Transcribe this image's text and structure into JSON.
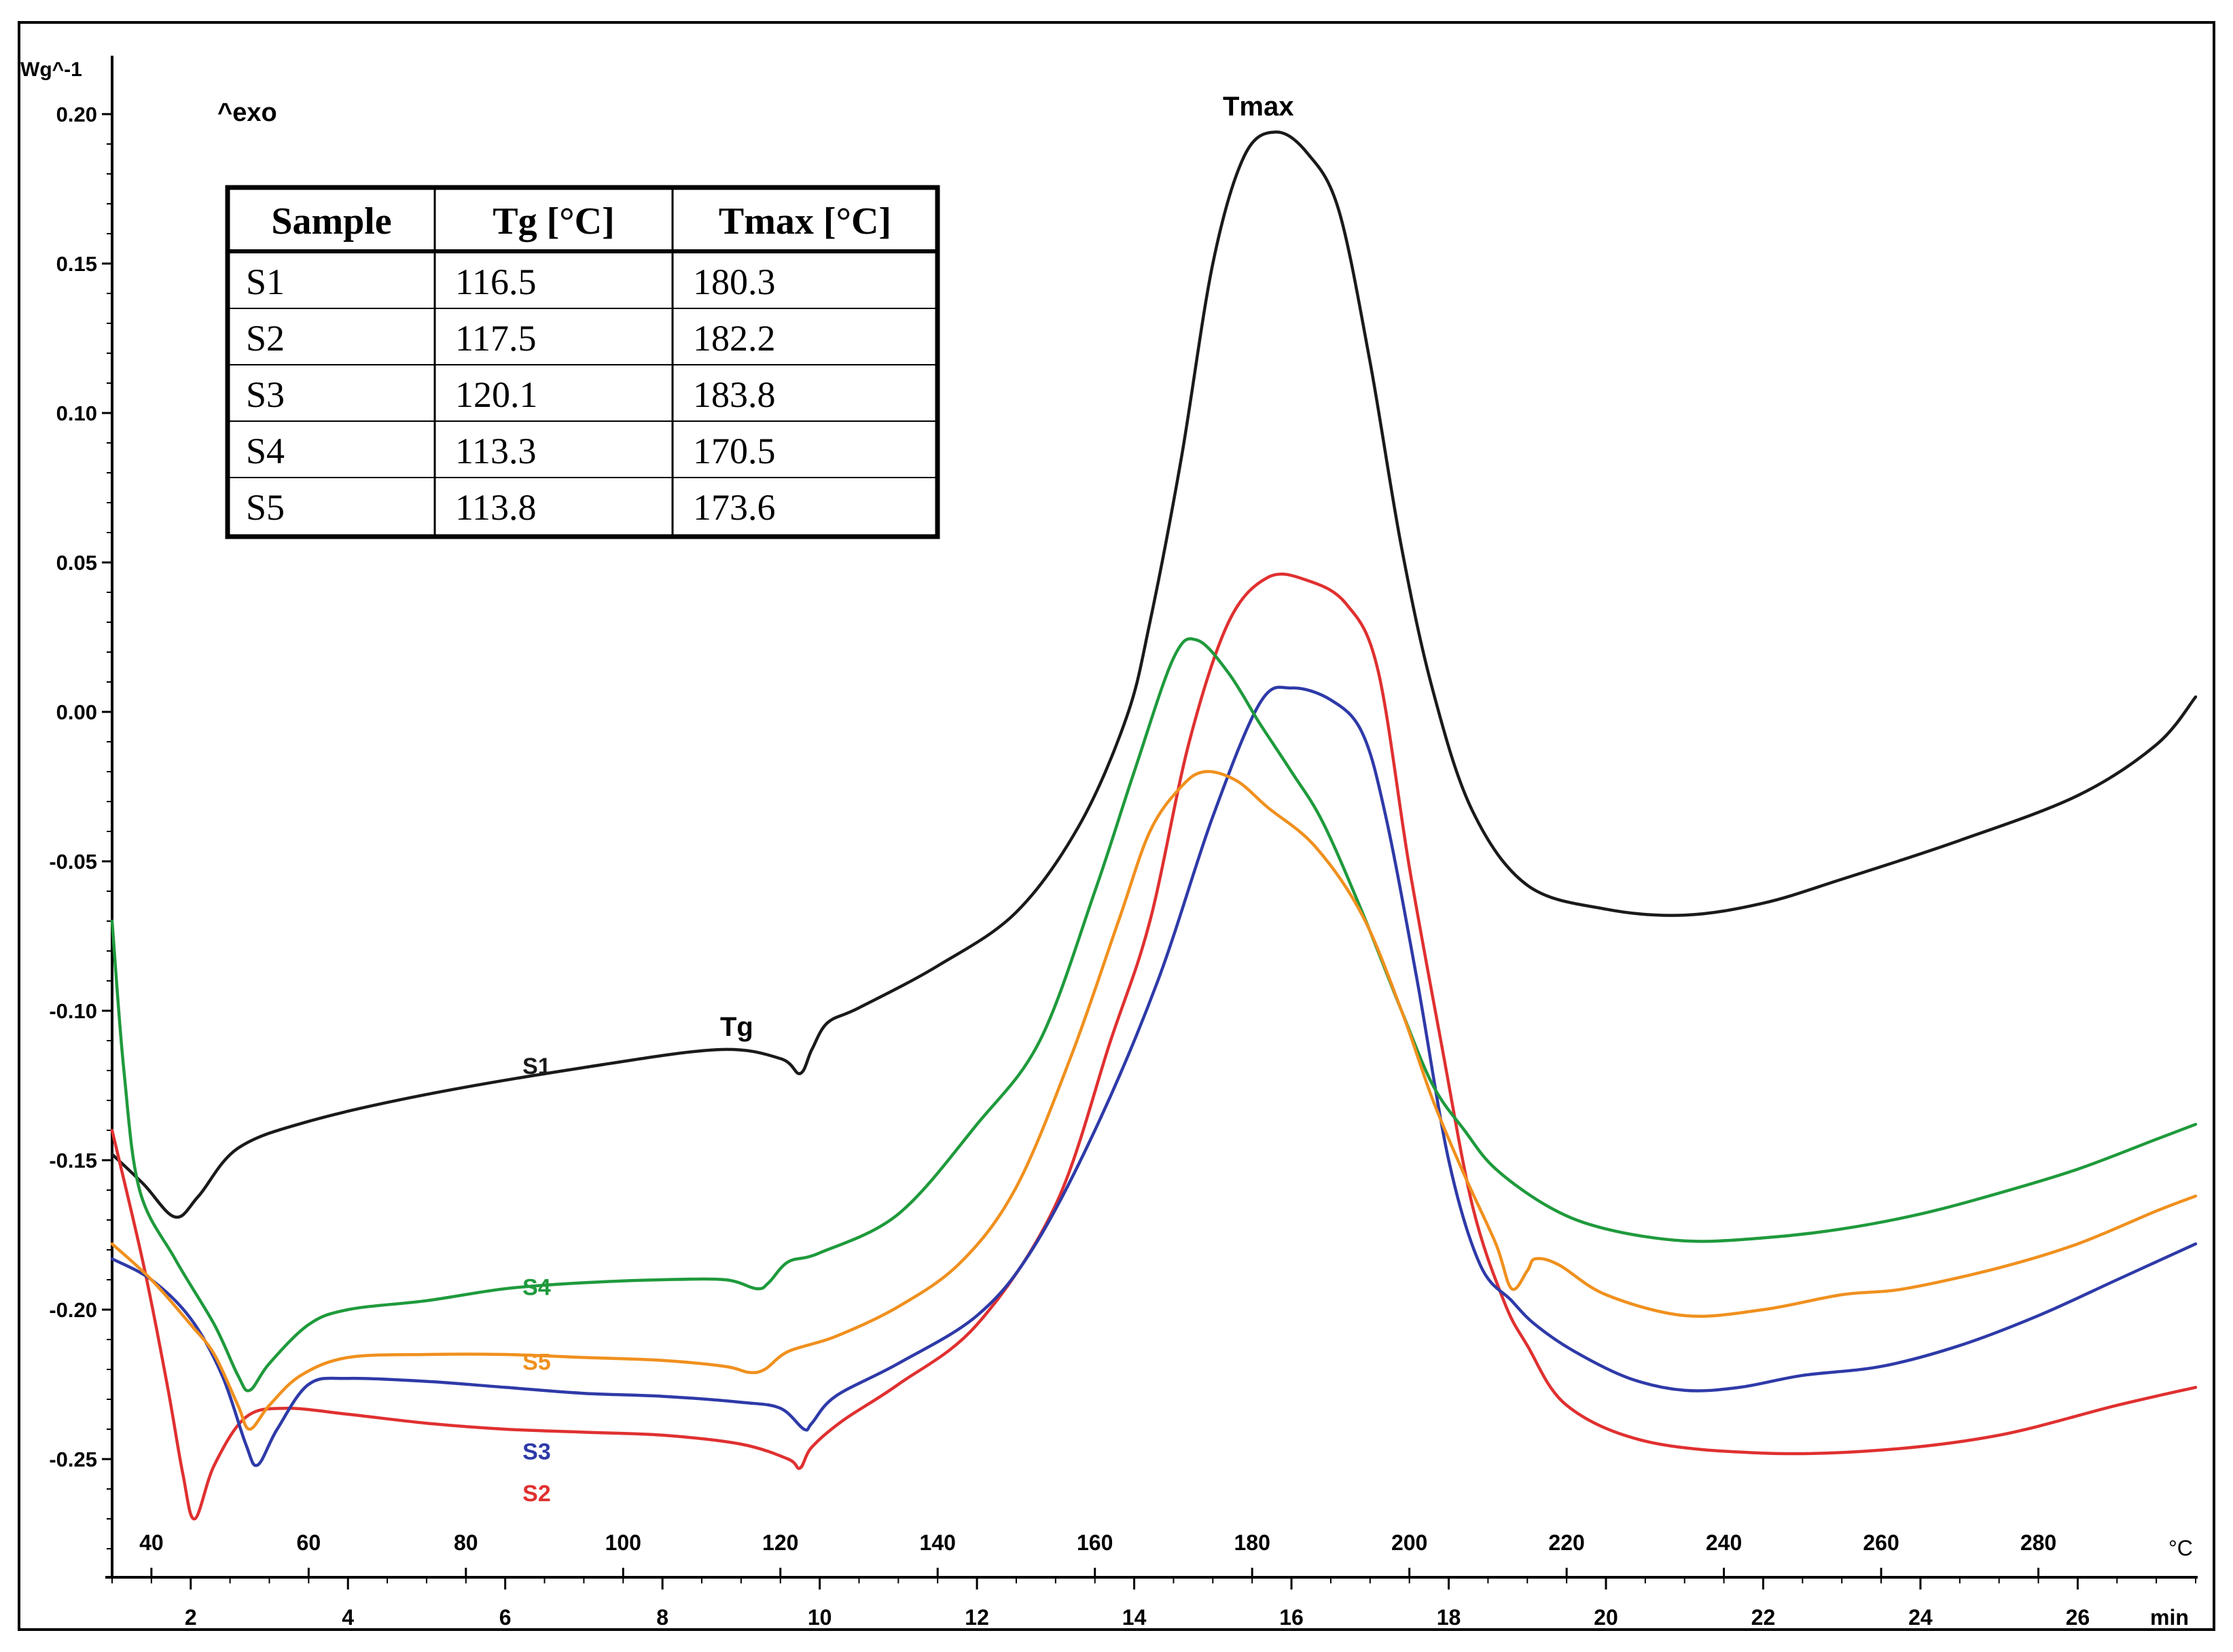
{
  "chart_data": {
    "type": "line",
    "ylabel": "Wg^-1",
    "exo_label": "^exo",
    "peak_label": "Tmax",
    "tg_label": "Tg",
    "ylim": [
      -0.29,
      0.21
    ],
    "yticks": [
      0.2,
      0.15,
      0.1,
      0.05,
      0.0,
      -0.05,
      -0.1,
      -0.15,
      -0.2,
      -0.25
    ],
    "ytick_labels": [
      "0.20",
      "0.15",
      "0.10",
      "0.05",
      "0.00",
      "-0.05",
      "-0.10",
      "-0.15",
      "-0.20",
      "-0.25"
    ],
    "time_axis": {
      "unit": "min",
      "range": [
        1,
        27.5
      ],
      "ticks": [
        2,
        4,
        6,
        8,
        10,
        12,
        14,
        16,
        18,
        20,
        22,
        24,
        26
      ],
      "tick_labels": [
        "2",
        "4",
        "6",
        "8",
        "10",
        "12",
        "14",
        "16",
        "18",
        "20",
        "22",
        "24",
        "26"
      ]
    },
    "temperature_axis": {
      "unit": "°C",
      "tick_labels": [
        "40",
        "60",
        "80",
        "100",
        "120",
        "140",
        "160",
        "180",
        "200",
        "220",
        "240",
        "260",
        "280"
      ],
      "tick_times": [
        1.5,
        3.5,
        5.5,
        7.5,
        9.5,
        11.5,
        13.5,
        15.5,
        17.5,
        19.5,
        21.5,
        23.5,
        25.5
      ]
    },
    "series": [
      {
        "name": "S1",
        "color": "#1a1a1a",
        "label_at": [
          6.4,
          -0.112
        ],
        "points": [
          [
            1,
            -0.148
          ],
          [
            1.4,
            -0.158
          ],
          [
            1.8,
            -0.169
          ],
          [
            2.1,
            -0.162
          ],
          [
            2.6,
            -0.146
          ],
          [
            3.5,
            -0.137
          ],
          [
            5,
            -0.128
          ],
          [
            7,
            -0.119
          ],
          [
            8.7,
            -0.113
          ],
          [
            9.5,
            -0.116
          ],
          [
            9.75,
            -0.121
          ],
          [
            9.9,
            -0.113
          ],
          [
            10.1,
            -0.104
          ],
          [
            10.5,
            -0.099
          ],
          [
            11.5,
            -0.085
          ],
          [
            12.5,
            -0.067
          ],
          [
            13.3,
            -0.038
          ],
          [
            13.9,
            -0.002
          ],
          [
            14.2,
            0.03
          ],
          [
            14.6,
            0.085
          ],
          [
            15,
            0.15
          ],
          [
            15.4,
            0.186
          ],
          [
            15.8,
            0.194
          ],
          [
            16.2,
            0.187
          ],
          [
            16.6,
            0.168
          ],
          [
            17,
            0.117
          ],
          [
            17.4,
            0.055
          ],
          [
            17.8,
            0.007
          ],
          [
            18.3,
            -0.033
          ],
          [
            19,
            -0.058
          ],
          [
            20,
            -0.066
          ],
          [
            21,
            -0.068
          ],
          [
            22,
            -0.064
          ],
          [
            23,
            -0.056
          ],
          [
            24.5,
            -0.043
          ],
          [
            26,
            -0.028
          ],
          [
            27,
            -0.011
          ],
          [
            27.5,
            0.005
          ]
        ]
      },
      {
        "name": "S2",
        "color": "#e03030",
        "label_at": [
          6.4,
          -0.255
        ],
        "points": [
          [
            1,
            -0.14
          ],
          [
            1.4,
            -0.185
          ],
          [
            1.7,
            -0.225
          ],
          [
            1.9,
            -0.255
          ],
          [
            2.05,
            -0.27
          ],
          [
            2.3,
            -0.252
          ],
          [
            2.7,
            -0.236
          ],
          [
            3.2,
            -0.233
          ],
          [
            4,
            -0.235
          ],
          [
            5,
            -0.238
          ],
          [
            6,
            -0.24
          ],
          [
            7,
            -0.241
          ],
          [
            8,
            -0.242
          ],
          [
            9,
            -0.245
          ],
          [
            9.6,
            -0.25
          ],
          [
            9.75,
            -0.253
          ],
          [
            9.9,
            -0.246
          ],
          [
            10.3,
            -0.237
          ],
          [
            11,
            -0.225
          ],
          [
            12,
            -0.205
          ],
          [
            13,
            -0.165
          ],
          [
            13.7,
            -0.11
          ],
          [
            14.2,
            -0.07
          ],
          [
            14.7,
            -0.01
          ],
          [
            15.2,
            0.03
          ],
          [
            15.7,
            0.045
          ],
          [
            16.2,
            0.044
          ],
          [
            16.7,
            0.036
          ],
          [
            17.1,
            0.014
          ],
          [
            17.5,
            -0.052
          ],
          [
            17.9,
            -0.11
          ],
          [
            18.3,
            -0.165
          ],
          [
            18.7,
            -0.197
          ],
          [
            19,
            -0.212
          ],
          [
            19.5,
            -0.232
          ],
          [
            20.5,
            -0.244
          ],
          [
            22,
            -0.248
          ],
          [
            23.5,
            -0.247
          ],
          [
            25,
            -0.242
          ],
          [
            26.5,
            -0.232
          ],
          [
            27.5,
            -0.226
          ]
        ]
      },
      {
        "name": "S3",
        "color": "#2e3aa8",
        "label_at": [
          6.4,
          -0.241
        ],
        "points": [
          [
            1,
            -0.183
          ],
          [
            1.5,
            -0.19
          ],
          [
            2,
            -0.203
          ],
          [
            2.4,
            -0.222
          ],
          [
            2.7,
            -0.245
          ],
          [
            2.85,
            -0.252
          ],
          [
            3.1,
            -0.24
          ],
          [
            3.5,
            -0.225
          ],
          [
            4,
            -0.223
          ],
          [
            5,
            -0.224
          ],
          [
            6,
            -0.226
          ],
          [
            7,
            -0.228
          ],
          [
            8,
            -0.229
          ],
          [
            9,
            -0.231
          ],
          [
            9.5,
            -0.233
          ],
          [
            9.8,
            -0.24
          ],
          [
            9.9,
            -0.238
          ],
          [
            10.2,
            -0.229
          ],
          [
            11,
            -0.218
          ],
          [
            12,
            -0.202
          ],
          [
            12.7,
            -0.18
          ],
          [
            13.5,
            -0.14
          ],
          [
            14.3,
            -0.09
          ],
          [
            15,
            -0.035
          ],
          [
            15.6,
            0.003
          ],
          [
            16,
            0.008
          ],
          [
            16.5,
            0.004
          ],
          [
            16.9,
            -0.007
          ],
          [
            17.2,
            -0.035
          ],
          [
            17.6,
            -0.09
          ],
          [
            18,
            -0.15
          ],
          [
            18.4,
            -0.185
          ],
          [
            18.8,
            -0.197
          ],
          [
            19.1,
            -0.205
          ],
          [
            19.6,
            -0.214
          ],
          [
            20.3,
            -0.223
          ],
          [
            21,
            -0.227
          ],
          [
            21.7,
            -0.226
          ],
          [
            22.5,
            -0.222
          ],
          [
            23.5,
            -0.219
          ],
          [
            24.5,
            -0.212
          ],
          [
            25.5,
            -0.202
          ],
          [
            26.5,
            -0.19
          ],
          [
            27.5,
            -0.178
          ]
        ]
      },
      {
        "name": "S4",
        "color": "#1f9a3c",
        "label_at": [
          6.4,
          -0.186
        ],
        "points": [
          [
            1,
            -0.07
          ],
          [
            1.15,
            -0.12
          ],
          [
            1.35,
            -0.16
          ],
          [
            1.8,
            -0.183
          ],
          [
            2.3,
            -0.205
          ],
          [
            2.6,
            -0.222
          ],
          [
            2.75,
            -0.227
          ],
          [
            3,
            -0.218
          ],
          [
            3.5,
            -0.205
          ],
          [
            4,
            -0.2
          ],
          [
            5,
            -0.197
          ],
          [
            6,
            -0.193
          ],
          [
            7,
            -0.191
          ],
          [
            8,
            -0.19
          ],
          [
            8.8,
            -0.19
          ],
          [
            9.2,
            -0.193
          ],
          [
            9.35,
            -0.191
          ],
          [
            9.6,
            -0.184
          ],
          [
            10,
            -0.181
          ],
          [
            11,
            -0.168
          ],
          [
            12,
            -0.138
          ],
          [
            12.8,
            -0.11
          ],
          [
            13.5,
            -0.06
          ],
          [
            14,
            -0.02
          ],
          [
            14.5,
            0.018
          ],
          [
            14.8,
            0.024
          ],
          [
            15.2,
            0.013
          ],
          [
            15.6,
            -0.004
          ],
          [
            16,
            -0.02
          ],
          [
            16.4,
            -0.037
          ],
          [
            16.9,
            -0.067
          ],
          [
            17.4,
            -0.1
          ],
          [
            17.8,
            -0.125
          ],
          [
            18.2,
            -0.14
          ],
          [
            18.6,
            -0.153
          ],
          [
            19.3,
            -0.166
          ],
          [
            20,
            -0.173
          ],
          [
            21,
            -0.177
          ],
          [
            22,
            -0.176
          ],
          [
            23,
            -0.173
          ],
          [
            24,
            -0.168
          ],
          [
            25,
            -0.161
          ],
          [
            26,
            -0.153
          ],
          [
            27,
            -0.143
          ],
          [
            27.5,
            -0.138
          ]
        ]
      },
      {
        "name": "S5",
        "color": "#f0901e",
        "label_at": [
          6.4,
          -0.211
        ],
        "points": [
          [
            1,
            -0.178
          ],
          [
            1.5,
            -0.19
          ],
          [
            2,
            -0.205
          ],
          [
            2.3,
            -0.215
          ],
          [
            2.6,
            -0.232
          ],
          [
            2.75,
            -0.24
          ],
          [
            3,
            -0.232
          ],
          [
            3.4,
            -0.222
          ],
          [
            4,
            -0.216
          ],
          [
            5,
            -0.215
          ],
          [
            6,
            -0.215
          ],
          [
            7,
            -0.216
          ],
          [
            8,
            -0.217
          ],
          [
            8.8,
            -0.219
          ],
          [
            9.1,
            -0.221
          ],
          [
            9.3,
            -0.22
          ],
          [
            9.6,
            -0.214
          ],
          [
            10.2,
            -0.209
          ],
          [
            11,
            -0.199
          ],
          [
            11.8,
            -0.184
          ],
          [
            12.5,
            -0.159
          ],
          [
            13.2,
            -0.115
          ],
          [
            13.8,
            -0.07
          ],
          [
            14.2,
            -0.04
          ],
          [
            14.6,
            -0.025
          ],
          [
            14.9,
            -0.02
          ],
          [
            15.3,
            -0.023
          ],
          [
            15.7,
            -0.032
          ],
          [
            16.3,
            -0.045
          ],
          [
            16.9,
            -0.068
          ],
          [
            17.4,
            -0.1
          ],
          [
            17.8,
            -0.13
          ],
          [
            18.2,
            -0.155
          ],
          [
            18.6,
            -0.178
          ],
          [
            18.8,
            -0.193
          ],
          [
            19,
            -0.187
          ],
          [
            19.1,
            -0.183
          ],
          [
            19.4,
            -0.185
          ],
          [
            20,
            -0.195
          ],
          [
            21,
            -0.202
          ],
          [
            22,
            -0.2
          ],
          [
            23,
            -0.195
          ],
          [
            23.8,
            -0.193
          ],
          [
            25,
            -0.186
          ],
          [
            26,
            -0.178
          ],
          [
            27,
            -0.167
          ],
          [
            27.5,
            -0.162
          ]
        ]
      }
    ],
    "table": {
      "headers": [
        "Sample",
        "Tg [°C]",
        "Tmax [°C]"
      ],
      "rows": [
        [
          "S1",
          "116.5",
          "180.3"
        ],
        [
          "S2",
          "117.5",
          "182.2"
        ],
        [
          "S3",
          "120.1",
          "183.8"
        ],
        [
          "S4",
          "113.3",
          "170.5"
        ],
        [
          "S5",
          "113.8",
          "173.6"
        ]
      ]
    }
  }
}
